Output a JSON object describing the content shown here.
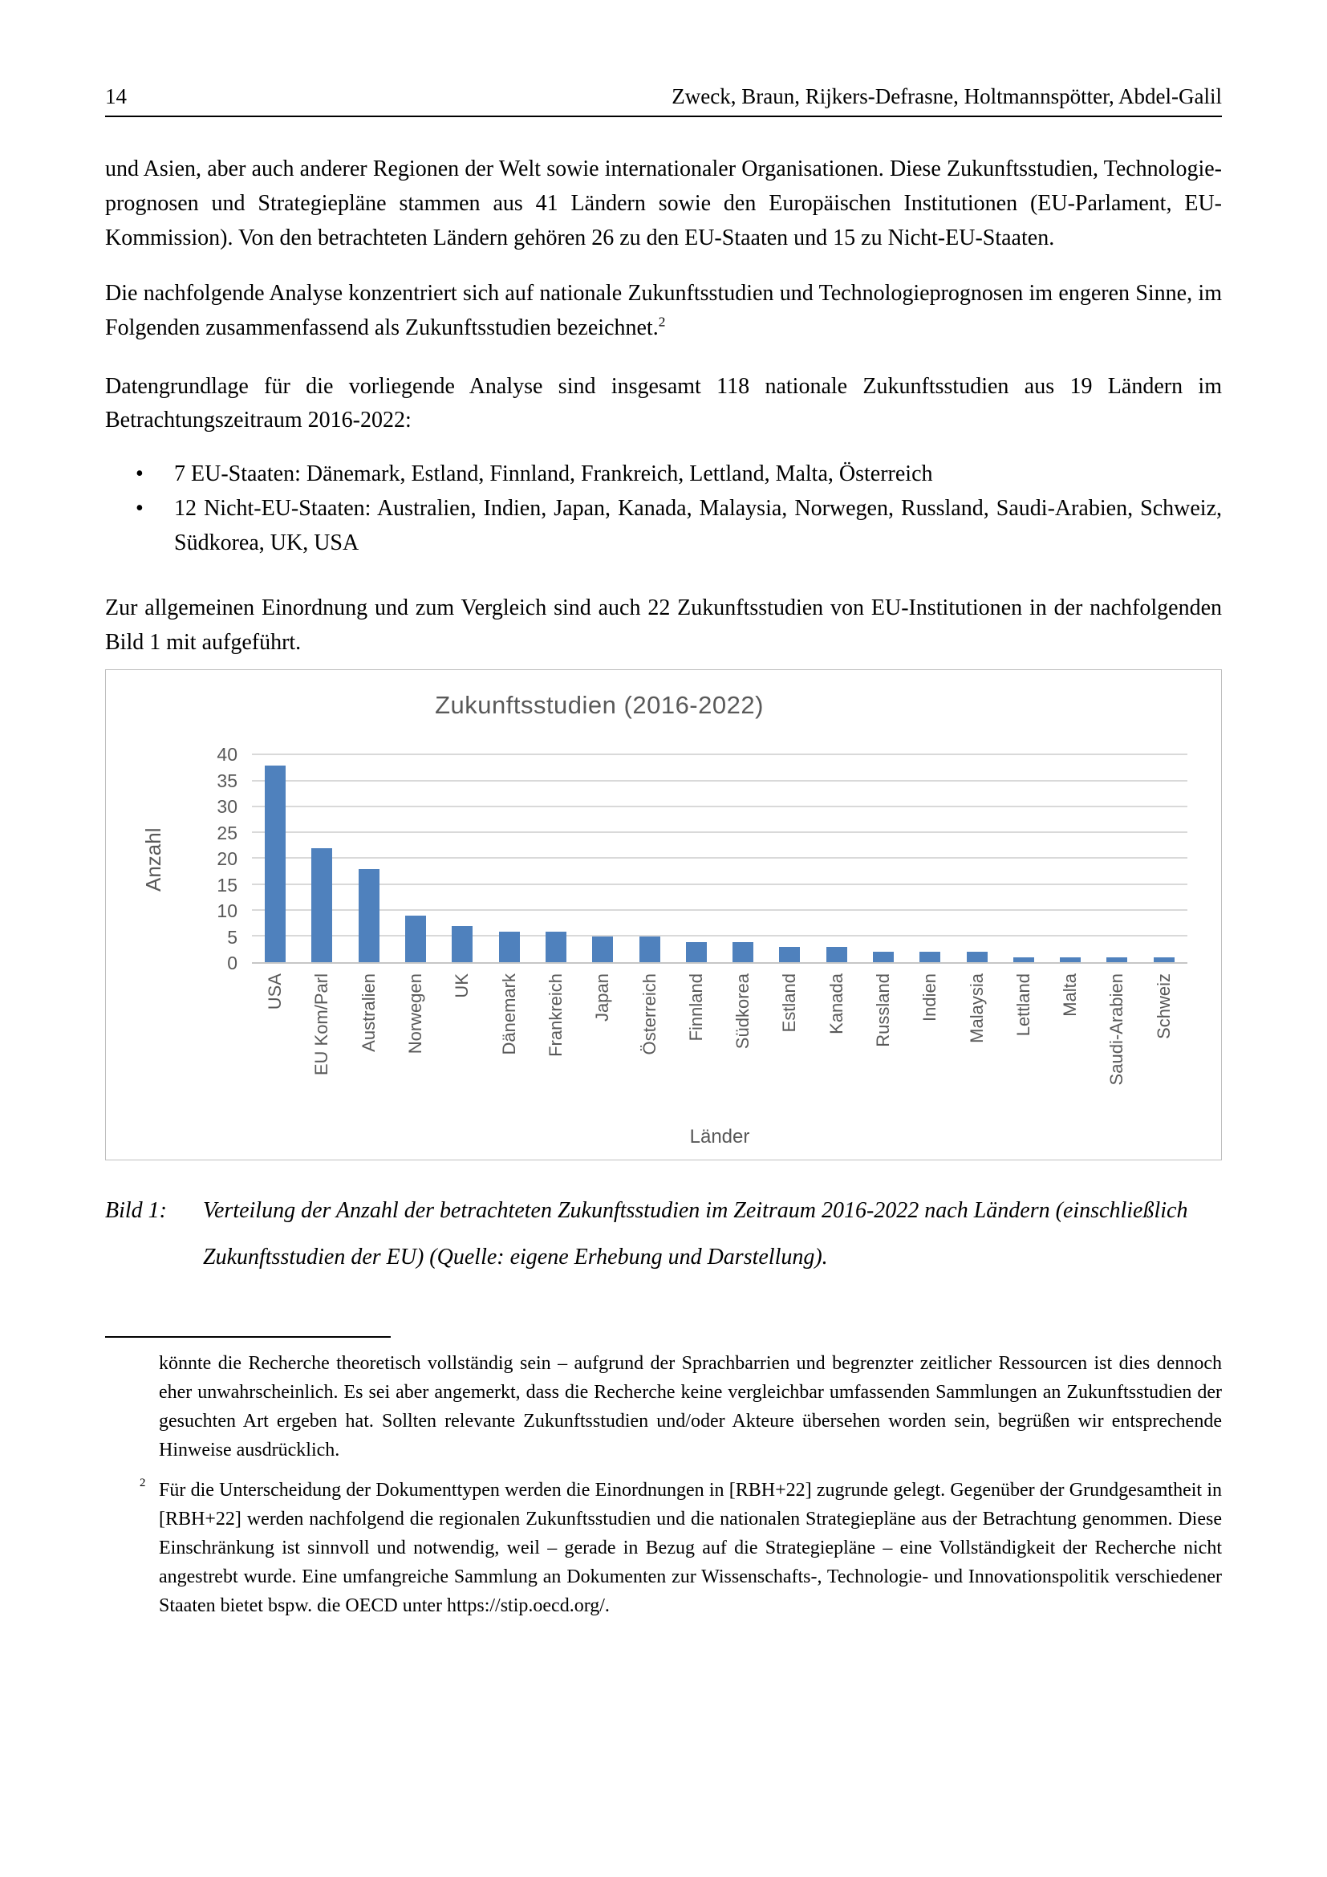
{
  "header": {
    "page_number": "14",
    "running_title": "Zweck, Braun, Rijkers-Defrasne, Holtmannspötter, Abdel-Galil"
  },
  "paragraphs": {
    "p1": "und Asien, aber auch anderer Regionen der Welt sowie internationaler Organisationen. Diese Zukunftsstudien, Technologie­prognosen und Strategiepläne stammen aus 41 Ländern sowie den Europäischen Institutionen (EU-Parlament, EU-Kommission). Von den betrachteten Län­dern gehören 26 zu den EU-Staaten und 15 zu Nicht-EU-Staaten.",
    "p2_text": "Die nachfolgende Analyse konzentriert sich auf nationale Zukunftsstudien und Technologie­prognosen im engeren Sinne, im Folgenden zusammenfassend als Zukunftsstudien bezeichnet.",
    "p2_footnote_ref": "2",
    "p3": "Datengrundlage für die vorliegende Analyse sind insgesamt 118 nationale Zukunftsstudien aus 19 Ländern im Betrachtungszeitraum 2016-2022:",
    "p4": "Zur allgemeinen Einordnung und zum Vergleich sind auch 22 Zukunftsstudien von EU-Insti­tutionen in der nachfolgenden Bild 1 mit aufgeführt."
  },
  "bullets": [
    "7 EU-Staaten: Dänemark, Estland, Finnland, Frankreich, Lettland, Malta, Österreich",
    "12 Nicht-EU-Staaten: Australien, Indien, Japan, Kanada, Malaysia, Norwegen, Russland, Saudi-Arabien, Schweiz, Südkorea, UK, USA"
  ],
  "chart_data": {
    "type": "bar",
    "title": "Zukunftsstudien (2016-2022)",
    "xlabel": "Länder",
    "ylabel": "Anzahl",
    "ylim": [
      0,
      40
    ],
    "ytick_step": 5,
    "grid": true,
    "legend": "none",
    "bar_color": "#4F81BD",
    "gridline_color": "#D9D9D9",
    "text_color": "#595959",
    "categories": [
      "USA",
      "EU Kom/Parl",
      "Australien",
      "Norwegen",
      "UK",
      "Dänemark",
      "Frankreich",
      "Japan",
      "Österreich",
      "Finnland",
      "Südkorea",
      "Estland",
      "Kanada",
      "Russland",
      "Indien",
      "Malaysia",
      "Lettland",
      "Malta",
      "Saudi-Arabien",
      "Schweiz"
    ],
    "values": [
      38,
      22,
      18,
      9,
      7,
      6,
      6,
      5,
      5,
      4,
      4,
      3,
      3,
      2,
      2,
      2,
      1,
      1,
      1,
      1
    ]
  },
  "caption": {
    "label": "Bild 1:",
    "text": "Verteilung der Anzahl der betrachteten Zukunftsstudien im Zeitraum 2016-2022 nach Ländern (einschließlich Zukunftsstudien der EU) (Quelle: eigene Erhebung und Dar­stellung)."
  },
  "footnotes": {
    "continuation": "könnte die Recherche theoretisch vollständig sein – aufgrund der Sprachbarrien und begrenzter zeitlicher Res­sourcen ist dies dennoch eher unwahrscheinlich. Es sei aber angemerkt, dass die Recherche keine vergleichbar umfassenden Sammlungen an Zukunftsstudien der gesuchten Art ergeben hat. Sollten relevante Zukunftsstu­dien und/oder Akteure übersehen worden sein, begrüßen wir entsprechende Hinweise ausdrücklich.",
    "fn2_marker": "2",
    "fn2_text": "Für die Unterscheidung der Dokumenttypen werden die Einordnungen in [RBH+22] zugrunde gelegt. Gegen­über der Grundgesamtheit in [RBH+22] werden nachfolgend die regionalen Zukunftsstudien und die nationalen Strategiepläne aus der Betrachtung genommen. Diese Einschränkung ist sinnvoll und notwendig, weil – gerade in Bezug auf die Strategiepläne – eine Vollständigkeit der Recherche nicht angestrebt wurde. Eine umfangreiche Sammlung an Dokumenten zur Wissenschafts-, Technologie- und Innovationspolitik verschiedener Staaten bie­tet bspw. die OECD unter https://stip.oecd.org/."
  }
}
